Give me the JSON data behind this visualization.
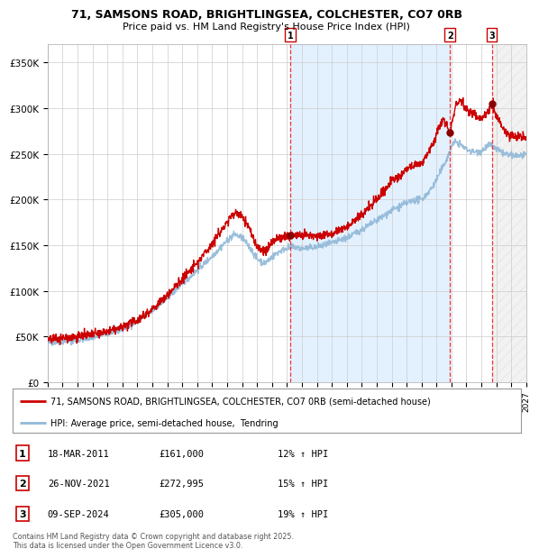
{
  "title1": "71, SAMSONS ROAD, BRIGHTLINGSEA, COLCHESTER, CO7 0RB",
  "title2": "Price paid vs. HM Land Registry's House Price Index (HPI)",
  "ylim": [
    0,
    370000
  ],
  "xlim_start": 1995.0,
  "xlim_end": 2027.0,
  "yticks": [
    0,
    50000,
    100000,
    150000,
    200000,
    250000,
    300000,
    350000
  ],
  "ytick_labels": [
    "£0",
    "£50K",
    "£100K",
    "£150K",
    "£200K",
    "£250K",
    "£300K",
    "£350K"
  ],
  "sale_dates": [
    2011.21,
    2021.9,
    2024.69
  ],
  "sale_prices": [
    161000,
    272995,
    305000
  ],
  "sale_labels": [
    "1",
    "2",
    "3"
  ],
  "red_line_color": "#cc0000",
  "blue_line_color": "#90b8d8",
  "dot_color": "#880000",
  "vline_color": "#ee3333",
  "shade_color": "#ddeeff",
  "legend_red_label": "71, SAMSONS ROAD, BRIGHTLINGSEA, COLCHESTER, CO7 0RB (semi-detached house)",
  "legend_blue_label": "HPI: Average price, semi-detached house,  Tendring",
  "table_data": [
    [
      "1",
      "18-MAR-2011",
      "£161,000",
      "12% ↑ HPI"
    ],
    [
      "2",
      "26-NOV-2021",
      "£272,995",
      "15% ↑ HPI"
    ],
    [
      "3",
      "09-SEP-2024",
      "£305,000",
      "19% ↑ HPI"
    ]
  ],
  "footer": "Contains HM Land Registry data © Crown copyright and database right 2025.\nThis data is licensed under the Open Government Licence v3.0.",
  "background_color": "#ffffff",
  "grid_color": "#cccccc"
}
